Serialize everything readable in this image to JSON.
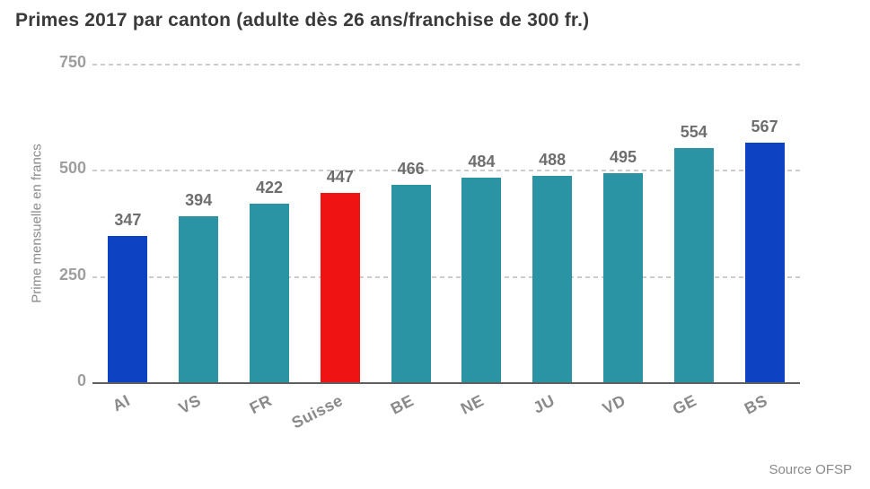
{
  "title": "Primes 2017 par canton (adulte dès 26 ans/franchise de 300 fr.)",
  "source_label": "Source OFSP",
  "colors": {
    "background": "#ffffff",
    "title_text": "#3a3a3a",
    "value_label": "#6e6e6e",
    "tick_label": "#9e9e9e",
    "x_label": "#8a8a8a",
    "source_text": "#8a8a8a",
    "grid": "#cccccc",
    "axis_line": "#5f5f5f",
    "teal": "#2a93a4",
    "blue": "#0d42c2",
    "red": "#ef1313"
  },
  "chart_data": {
    "type": "bar",
    "title": "Primes 2017 par canton (adulte dès 26 ans/franchise de 300 fr.)",
    "xlabel": "",
    "ylabel": "Prime mensuelle en francs",
    "ylim": [
      0,
      750
    ],
    "yticks": [
      0,
      250,
      500,
      750
    ],
    "grid": "horizontal-dashed",
    "legend": "none",
    "categories": [
      "AI",
      "VS",
      "FR",
      "Suisse",
      "BE",
      "NE",
      "JU",
      "VD",
      "GE",
      "BS"
    ],
    "values": [
      347,
      394,
      422,
      447,
      466,
      484,
      488,
      495,
      554,
      567
    ],
    "bar_colors": [
      "#0d42c2",
      "#2a93a4",
      "#2a93a4",
      "#ef1313",
      "#2a93a4",
      "#2a93a4",
      "#2a93a4",
      "#2a93a4",
      "#2a93a4",
      "#0d42c2"
    ],
    "value_labels_shown": true
  }
}
